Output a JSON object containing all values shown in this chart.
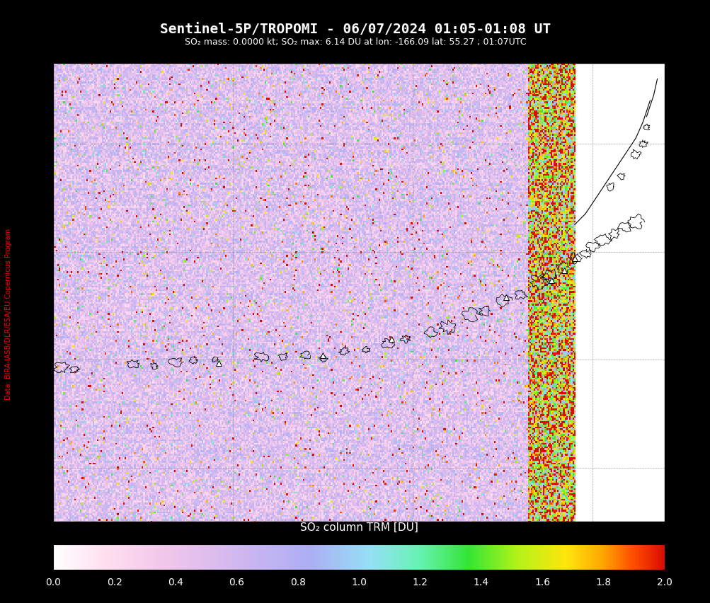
{
  "title": "Sentinel-5P/TROPOMI - 06/07/2024 01:05-01:08 UT",
  "subtitle": "SO₂ mass: 0.0000 kt; SO₂ max: 6.14 DU at lon: -166.09 lat: 55.27 ; 01:07UTC",
  "colorbar_label": "SO₂ column TRM [DU]",
  "data_credit": "Data: BIRA-IASB/DLR/ESA/EU Copernicus Program",
  "lon_min": -180,
  "lon_max": -163,
  "lat_min": 49,
  "lat_max": 57.5,
  "swath_lon_min": -180,
  "swath_lon_max": -165.5,
  "high_lon_min": -166.5,
  "high_lon_max": -165.5,
  "xticks": [
    -180,
    -175,
    -170,
    -165
  ],
  "yticks": [
    50,
    52,
    54,
    56
  ],
  "cmap_min": 0.0,
  "cmap_max": 2.0,
  "colorbar_ticks": [
    0.0,
    0.2,
    0.4,
    0.6,
    0.8,
    1.0,
    1.2,
    1.4,
    1.6,
    1.8,
    2.0
  ],
  "noise_seed": 12345,
  "background_color": "#ffffff",
  "fig_bg_color": "#000000",
  "fig_width": 10.04,
  "fig_height": 8.53,
  "title_fontsize": 14,
  "subtitle_fontsize": 9,
  "tick_fontsize": 10,
  "colorbar_label_fontsize": 11
}
